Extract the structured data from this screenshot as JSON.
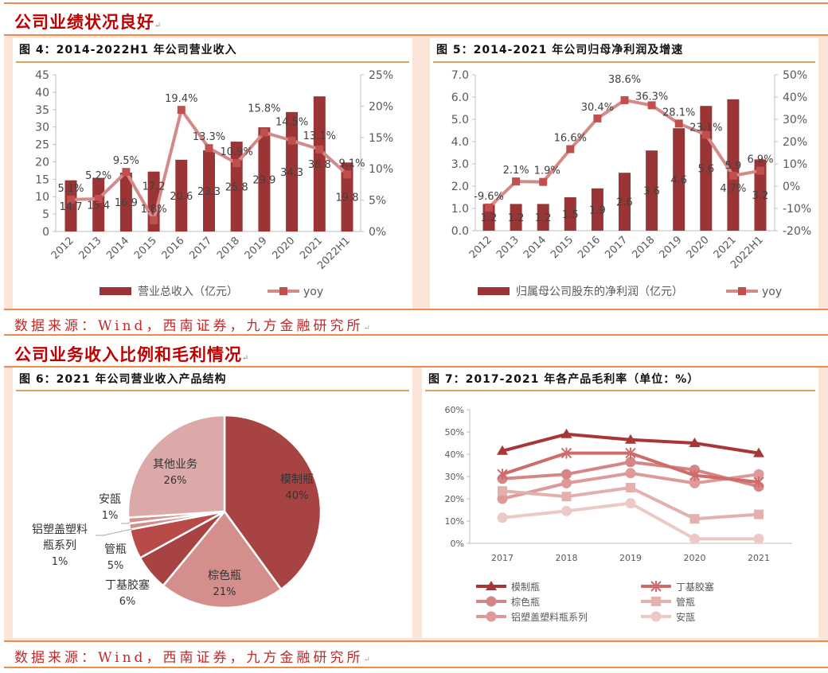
{
  "section1": {
    "heading": "公司业绩状况良好",
    "source": "数据来源：Wind，西南证券，九方金融研究所"
  },
  "section2": {
    "heading": "公司业务收入比例和毛利情况",
    "source": "数据来源：Wind，西南证券，九方金融研究所"
  },
  "paragraph_mark": "↵",
  "colors": {
    "heading": "#c00000",
    "bar": "#9b3535",
    "line": "#d48a88",
    "marker": "#c0504d",
    "rule": "#ee8a4a"
  },
  "chart_data": [
    {
      "type": "bar",
      "title": "图 4：2014-2022H1 年公司营业收入",
      "categories": [
        "2012",
        "2013",
        "2014",
        "2015",
        "2016",
        "2017",
        "2018",
        "2019",
        "2020",
        "2021",
        "2022H1"
      ],
      "series": [
        {
          "name": "营业总收入（亿元）",
          "type": "bar",
          "axis": "left",
          "values": [
            14.7,
            15.4,
            16.9,
            17.2,
            20.6,
            23.3,
            25.8,
            29.9,
            34.3,
            38.8,
            19.8
          ],
          "labels": [
            "14.7",
            "15.4",
            "16.9",
            "17.2",
            "20.6",
            "23.3",
            "25.8",
            "29.9",
            "34.3",
            "38.8",
            "19.8"
          ]
        },
        {
          "name": "yoy",
          "type": "line",
          "axis": "right",
          "values": [
            5.1,
            5.2,
            9.5,
            1.8,
            19.4,
            13.3,
            10.9,
            15.8,
            14.5,
            13.1,
            9.1
          ],
          "labels": [
            "5.1%",
            "5.2%",
            "9.5%",
            "1.8%",
            "19.4%",
            "13.3%",
            "10.9%",
            "15.8%",
            "14.5%",
            "13.1%",
            "9.1%"
          ]
        }
      ],
      "ylim": [
        0,
        45
      ],
      "yticks": [
        "0",
        "5",
        "10",
        "15",
        "20",
        "25",
        "30",
        "35",
        "40",
        "45"
      ],
      "y2lim": [
        0,
        25
      ],
      "y2ticks": [
        "0%",
        "5%",
        "10%",
        "15%",
        "20%",
        "25%"
      ],
      "legend": "bottom"
    },
    {
      "type": "bar",
      "title": "图 5：2014-2021 年公司归母净利润及增速",
      "categories": [
        "2012",
        "2013",
        "2014",
        "2015",
        "2016",
        "2017",
        "2018",
        "2019",
        "2020",
        "2021",
        "2022H1"
      ],
      "series": [
        {
          "name": "归属母公司股东的净利润（亿元）",
          "type": "bar",
          "axis": "left",
          "values": [
            1.2,
            1.2,
            1.2,
            1.5,
            1.9,
            2.6,
            3.6,
            4.6,
            5.6,
            5.9,
            3.2
          ],
          "labels": [
            "1.2",
            "1.2",
            "1.2",
            "1.5",
            "1.9",
            "2.6",
            "3.6",
            "4.6",
            "5.6",
            "5.9",
            "3.2"
          ]
        },
        {
          "name": "yoy",
          "type": "line",
          "axis": "right",
          "values": [
            -9.6,
            2.1,
            1.9,
            16.6,
            30.4,
            38.6,
            36.3,
            28.1,
            23.1,
            4.7,
            6.9
          ],
          "labels": [
            "-9.6%",
            "2.1%",
            "1.9%",
            "16.6%",
            "30.4%",
            "38.6%",
            "36.3%",
            "28.1%",
            "23.1%",
            "4.7%",
            "6.9%"
          ]
        }
      ],
      "ylim": [
        0,
        7
      ],
      "yticks": [
        "0.0",
        "1.0",
        "2.0",
        "3.0",
        "4.0",
        "5.0",
        "6.0",
        "7.0"
      ],
      "y2lim": [
        -20,
        50
      ],
      "y2ticks": [
        "-20%",
        "-10%",
        "0%",
        "10%",
        "20%",
        "30%",
        "40%",
        "50%"
      ],
      "legend": "bottom"
    },
    {
      "type": "pie",
      "title": "图 6：2021 年公司营业收入产品结构",
      "slices": [
        {
          "name": "模制瓶",
          "value": 40,
          "label": "40%",
          "color": "#a84343"
        },
        {
          "name": "棕色瓶",
          "value": 21,
          "label": "21%",
          "color": "#d48f8d"
        },
        {
          "name": "丁基胶塞",
          "value": 6,
          "label": "6%",
          "color": "#a84343"
        },
        {
          "name": "管瓶",
          "value": 5,
          "label": "5%",
          "color": "#b84a48"
        },
        {
          "name": "铝塑盖塑料瓶系列",
          "value": 1,
          "label": "1%",
          "color": "#d48f8d"
        },
        {
          "name": "安瓿",
          "value": 1,
          "label": "1%",
          "color": "#d88f8d"
        },
        {
          "name": "其他业务",
          "value": 26,
          "label": "26%",
          "color": "#dba9a8"
        }
      ]
    },
    {
      "type": "line",
      "title": "图 7：2017-2021 年各产品毛利率（单位：%）",
      "x": [
        "2017",
        "2018",
        "2019",
        "2020",
        "2021"
      ],
      "series": [
        {
          "name": "模制瓶",
          "marker": "triangle",
          "color": "#a83636",
          "values": [
            41.5,
            49,
            46.5,
            45,
            40.5
          ]
        },
        {
          "name": "丁基胶塞",
          "marker": "star",
          "color": "#cf6b6b",
          "values": [
            31,
            40.5,
            40.5,
            30.5,
            27.5
          ]
        },
        {
          "name": "棕色瓶",
          "marker": "circle",
          "color": "#d48686",
          "values": [
            29,
            31,
            36.5,
            33,
            25.5
          ]
        },
        {
          "name": "管瓶",
          "marker": "square",
          "color": "#e3b0ae",
          "values": [
            23.5,
            21,
            25,
            11,
            13
          ]
        },
        {
          "name": "铝塑盖塑料瓶系列",
          "marker": "circle",
          "color": "#dd9a98",
          "values": [
            20,
            27,
            31.5,
            27,
            31
          ]
        },
        {
          "name": "安瓿",
          "marker": "circle",
          "color": "#ecc8c7",
          "values": [
            11.5,
            14.5,
            18,
            2,
            2
          ]
        }
      ],
      "ylim": [
        0,
        60
      ],
      "yticks": [
        "0%",
        "10%",
        "20%",
        "30%",
        "40%",
        "50%",
        "60%"
      ],
      "legend": "bottom"
    }
  ]
}
